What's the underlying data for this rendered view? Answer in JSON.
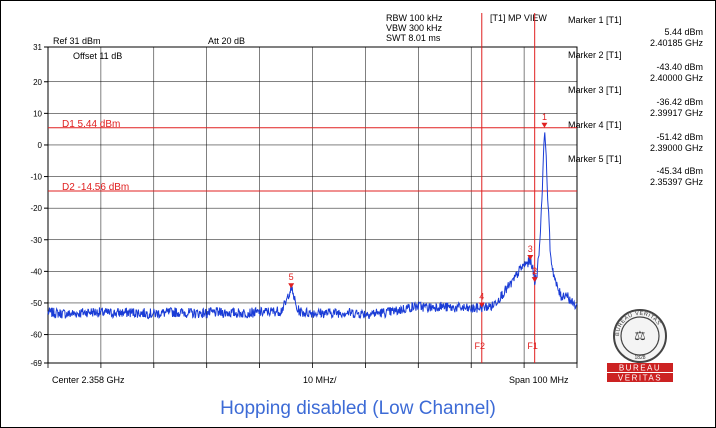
{
  "header": {
    "rbw": "RBW 100 kHz",
    "vbw": "VBW 300 kHz",
    "swt": "SWT 8.01 ms",
    "view": "[T1] MP VIEW",
    "ref": "Ref 31 dBm",
    "att": "Att  20 dB",
    "offset": "Offset 11 dB"
  },
  "markers_panel": [
    {
      "name": "Marker 1 [T1]",
      "level": "5.44 dBm",
      "freq": "2.40185 GHz"
    },
    {
      "name": "Marker 2 [T1]",
      "level": "-43.40 dBm",
      "freq": "2.40000 GHz"
    },
    {
      "name": "Marker 3 [T1]",
      "level": "-36.42 dBm",
      "freq": "2.39917 GHz"
    },
    {
      "name": "Marker 4 [T1]",
      "level": "-51.42 dBm",
      "freq": "2.39000 GHz"
    },
    {
      "name": "Marker 5 [T1]",
      "level": "-45.34 dBm",
      "freq": "2.35397 GHz"
    }
  ],
  "footer": {
    "center": "Center 2.358 GHz",
    "span_per_div": "10 MHz/",
    "span": "Span 100 MHz"
  },
  "logo": {
    "ring_text": "BUREAU VERITAS",
    "year": "1828",
    "word1": "BUREAU",
    "word2": "VERITAS"
  },
  "caption": "Hopping disabled (Low Channel)",
  "colors": {
    "trace": "#1a3cd6",
    "marker": "#e02020",
    "grid": "#000000",
    "caption": "#3d6bd6",
    "logo_red": "#cc2222"
  },
  "chart_data": {
    "type": "line",
    "x_unit": "GHz",
    "y_unit": "dBm",
    "xlim": [
      2.308,
      2.408
    ],
    "ylim": [
      -69,
      31
    ],
    "y_ticks": [
      "31",
      "20",
      "10",
      "0",
      "-10",
      "-20",
      "-30",
      "-40",
      "-50",
      "-60",
      "-69"
    ],
    "display_lines": [
      {
        "label": "D1 5.44 dBm",
        "value": 5.44
      },
      {
        "label": "D2 -14.56 dBm",
        "value": -14.56
      }
    ],
    "frequency_lines": [
      {
        "label": "F1",
        "value": 2.4
      },
      {
        "label": "F2",
        "value": 2.39
      }
    ],
    "markers": [
      {
        "label": "1",
        "x": 2.40185,
        "y": 5.44
      },
      {
        "label": "2",
        "x": 2.4,
        "y": -43.4
      },
      {
        "label": "3",
        "x": 2.39917,
        "y": -36.42
      },
      {
        "label": "4",
        "x": 2.39,
        "y": -51.42
      },
      {
        "label": "5",
        "x": 2.35397,
        "y": -45.34
      }
    ],
    "series": [
      {
        "x": [
          2.308,
          2.312,
          2.316,
          2.32,
          2.324,
          2.328,
          2.332,
          2.336,
          2.34,
          2.344,
          2.348,
          2.352,
          2.353,
          2.3535,
          2.35397,
          2.3545,
          2.355,
          2.356,
          2.36,
          2.364,
          2.368,
          2.372,
          2.374,
          2.376,
          2.378,
          2.38,
          2.382,
          2.384,
          2.386,
          2.388,
          2.39,
          2.392,
          2.394,
          2.396,
          2.397,
          2.398,
          2.399,
          2.39917,
          2.3995,
          2.4,
          2.4005,
          2.401,
          2.4014,
          2.4017,
          2.40185,
          2.402,
          2.4023,
          2.4027,
          2.403,
          2.4035,
          2.404,
          2.405,
          2.406,
          2.407,
          2.408
        ],
        "y": [
          -53,
          -53.5,
          -52.8,
          -53.2,
          -53,
          -53.4,
          -52.9,
          -53.3,
          -53,
          -53.2,
          -53,
          -52.5,
          -50,
          -47,
          -45.3,
          -48,
          -52,
          -53,
          -53.2,
          -53,
          -53.4,
          -53,
          -52.5,
          -51.5,
          -51,
          -51.5,
          -51,
          -51.5,
          -51.5,
          -52,
          -51.4,
          -51,
          -47,
          -43,
          -40,
          -38,
          -37,
          -36.4,
          -38,
          -43.4,
          -40,
          -30,
          -15,
          -3,
          5.4,
          3,
          -10,
          -25,
          -35,
          -40,
          -44,
          -48,
          -47,
          -50,
          -51
        ]
      }
    ]
  }
}
